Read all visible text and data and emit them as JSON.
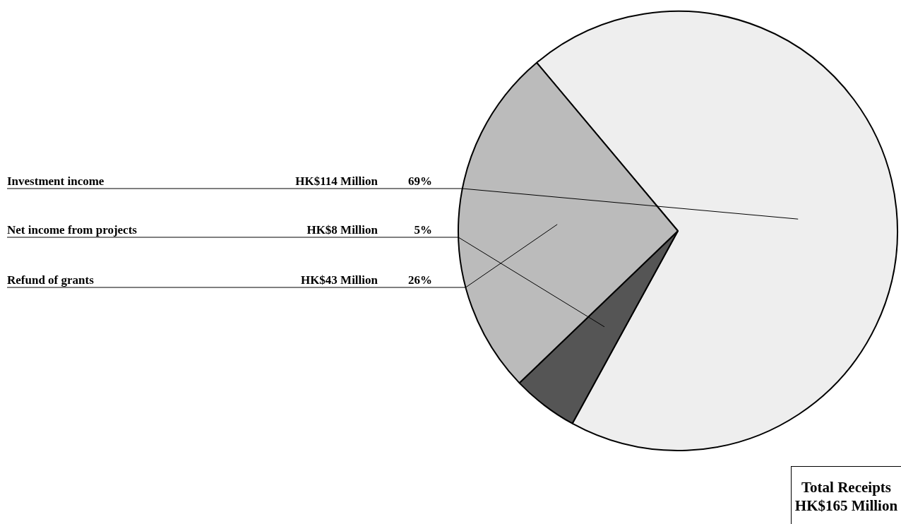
{
  "chart_data": {
    "type": "pie",
    "title": "Total Receipts\nHK$165 Million",
    "categories": [
      "Investment income",
      "Net income from projects",
      "Refund of grants"
    ],
    "values": [
      114,
      8,
      43
    ],
    "value_labels": [
      "HK$114 Million",
      "HK$8 Million",
      "HK$43 Million"
    ],
    "annotations": [
      "69%",
      "5%",
      "26%"
    ],
    "colors": [
      "#eeeeee",
      "#555555",
      "#bbbbbb"
    ],
    "legend": false
  }
}
